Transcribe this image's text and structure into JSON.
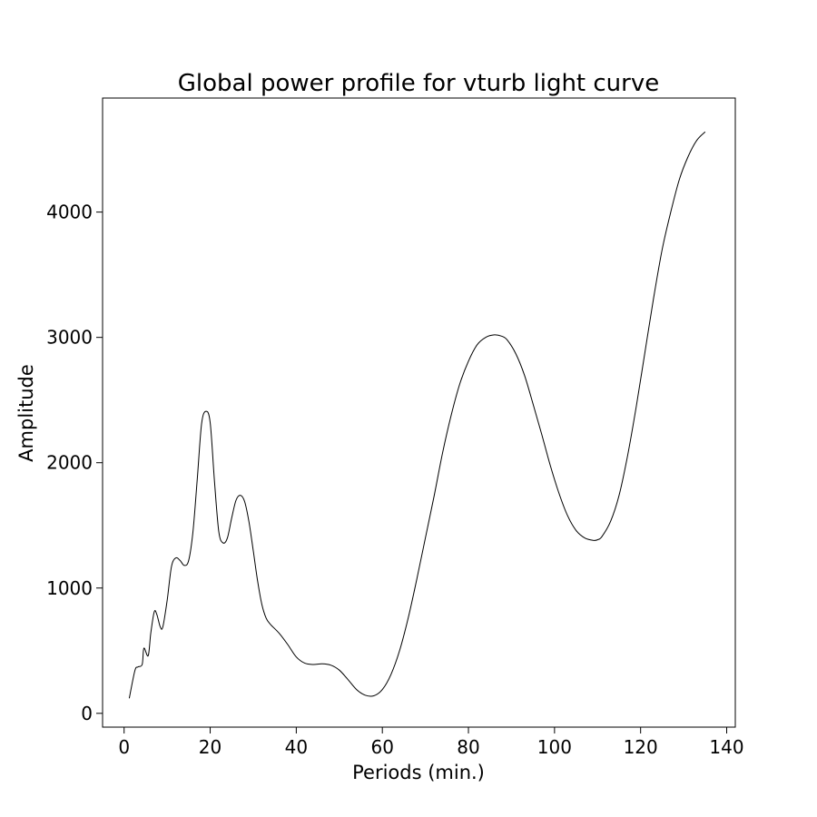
{
  "chart_data": {
    "type": "line",
    "title": "Global power profile for vturb light curve",
    "xlabel": "Periods (min.)",
    "ylabel": "Amplitude",
    "xlim": [
      -5,
      142
    ],
    "ylim": [
      -110,
      4910
    ],
    "xticks": [
      0,
      20,
      40,
      60,
      80,
      100,
      120,
      140
    ],
    "yticks": [
      0,
      1000,
      2000,
      3000,
      4000
    ],
    "xtick_labels": [
      "0",
      "20",
      "40",
      "60",
      "80",
      "100",
      "120",
      "140"
    ],
    "ytick_labels": [
      "0",
      "1000",
      "2000",
      "3000",
      "4000"
    ],
    "grid": false,
    "legend": "none",
    "series": [
      {
        "color": "#000000",
        "x": [
          1.2,
          2.5,
          3.2,
          4.2,
          4.6,
          5.6,
          6.2,
          7.0,
          7.6,
          8.4,
          9.0,
          10.0,
          11.0,
          12.0,
          13.0,
          14.0,
          15.0,
          16.0,
          17.0,
          18.0,
          19.0,
          20.0,
          21.0,
          22.0,
          23.0,
          24.0,
          25.0,
          26.0,
          27.0,
          28.0,
          29.0,
          30.0,
          31.0,
          32.0,
          33.0,
          34.0,
          36.0,
          38.0,
          40.0,
          42.0,
          44.0,
          46.0,
          48.0,
          50.0,
          52.0,
          54.0,
          56.0,
          58.0,
          60.0,
          62.0,
          64.0,
          66.0,
          68.0,
          70.0,
          72.0,
          74.0,
          76.0,
          78.0,
          80.0,
          82.0,
          84.0,
          86.0,
          87.7,
          89.0,
          91.0,
          93.0,
          95.0,
          97.0,
          99.0,
          101.0,
          103.0,
          105.0,
          107.0,
          109.0,
          110.0,
          111.0,
          113.0,
          115.0,
          117.0,
          119.0,
          121.0,
          123.0,
          125.0,
          127.0,
          129.0,
          131.0,
          133.0,
          135.0
        ],
        "y": [
          120,
          340,
          370,
          390,
          520,
          460,
          640,
          810,
          790,
          690,
          690,
          900,
          1170,
          1240,
          1220,
          1180,
          1220,
          1450,
          1870,
          2310,
          2410,
          2320,
          1850,
          1450,
          1360,
          1400,
          1560,
          1700,
          1740,
          1690,
          1530,
          1300,
          1060,
          870,
          760,
          710,
          640,
          550,
          450,
          400,
          390,
          395,
          385,
          345,
          270,
          190,
          145,
          140,
          190,
          310,
          500,
          760,
          1070,
          1400,
          1730,
          2080,
          2380,
          2630,
          2810,
          2940,
          3000,
          3020,
          3010,
          2980,
          2870,
          2700,
          2470,
          2230,
          1980,
          1760,
          1580,
          1460,
          1400,
          1380,
          1385,
          1410,
          1530,
          1740,
          2060,
          2450,
          2880,
          3310,
          3700,
          4000,
          4260,
          4440,
          4570,
          4640
        ]
      }
    ]
  }
}
